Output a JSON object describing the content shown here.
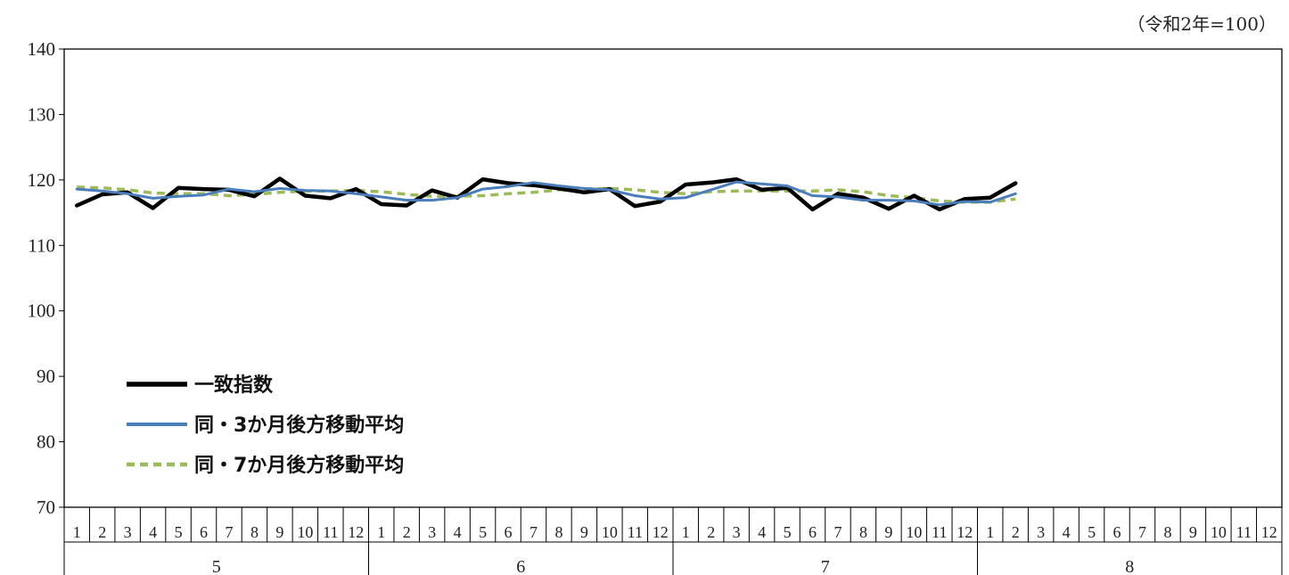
{
  "chart_data": {
    "type": "line",
    "unit_note": "（令和2年=100）",
    "ylim": [
      70,
      140
    ],
    "y_ticks": [
      70,
      80,
      90,
      100,
      110,
      120,
      130,
      140
    ],
    "months": [
      "1",
      "2",
      "3",
      "4",
      "5",
      "6",
      "7",
      "8",
      "9",
      "10",
      "11",
      "12"
    ],
    "years": [
      "5",
      "6",
      "7",
      "8"
    ],
    "grid": false,
    "legend_position": "bottom-left",
    "series": [
      {
        "name": "一致指数",
        "color": "#000000",
        "style": "solid-thick",
        "values": [
          116.1,
          117.8,
          118.1,
          115.7,
          118.8,
          118.6,
          118.5,
          117.5,
          120.2,
          117.6,
          117.2,
          118.6,
          116.3,
          116.1,
          118.4,
          117.3,
          120.1,
          119.5,
          119.2,
          118.7,
          118.1,
          118.6,
          116.0,
          116.7,
          119.3,
          119.6,
          120.1,
          118.5,
          118.8,
          115.5,
          117.9,
          117.3,
          115.6,
          117.6,
          115.5,
          117.1,
          117.3,
          119.5
        ]
      },
      {
        "name": "同・3か月後方移動平均",
        "color": "#4a7ebb",
        "style": "solid",
        "values": [
          118.6,
          118.3,
          117.9,
          117.2,
          117.5,
          117.7,
          118.6,
          118.2,
          118.7,
          118.4,
          118.3,
          117.9,
          117.4,
          116.9,
          116.9,
          117.3,
          118.6,
          119.0,
          119.6,
          119.1,
          118.7,
          118.5,
          117.6,
          117.1,
          117.3,
          118.5,
          119.7,
          119.4,
          119.1,
          117.6,
          117.4,
          116.9,
          116.9,
          116.8,
          116.2,
          116.7,
          116.6,
          117.9
        ]
      },
      {
        "name": "同・7か月後方移動平均",
        "color": "#9bbb59",
        "style": "dashed",
        "values": [
          118.9,
          118.8,
          118.5,
          118.0,
          117.9,
          117.9,
          117.6,
          117.8,
          118.1,
          118.3,
          118.3,
          118.4,
          118.2,
          117.8,
          117.5,
          117.5,
          117.6,
          117.9,
          118.1,
          118.5,
          118.6,
          118.7,
          118.5,
          118.1,
          117.9,
          118.2,
          118.3,
          118.3,
          118.3,
          118.3,
          118.5,
          118.2,
          117.6,
          117.3,
          116.8,
          116.6,
          116.6,
          117.1
        ]
      }
    ]
  }
}
